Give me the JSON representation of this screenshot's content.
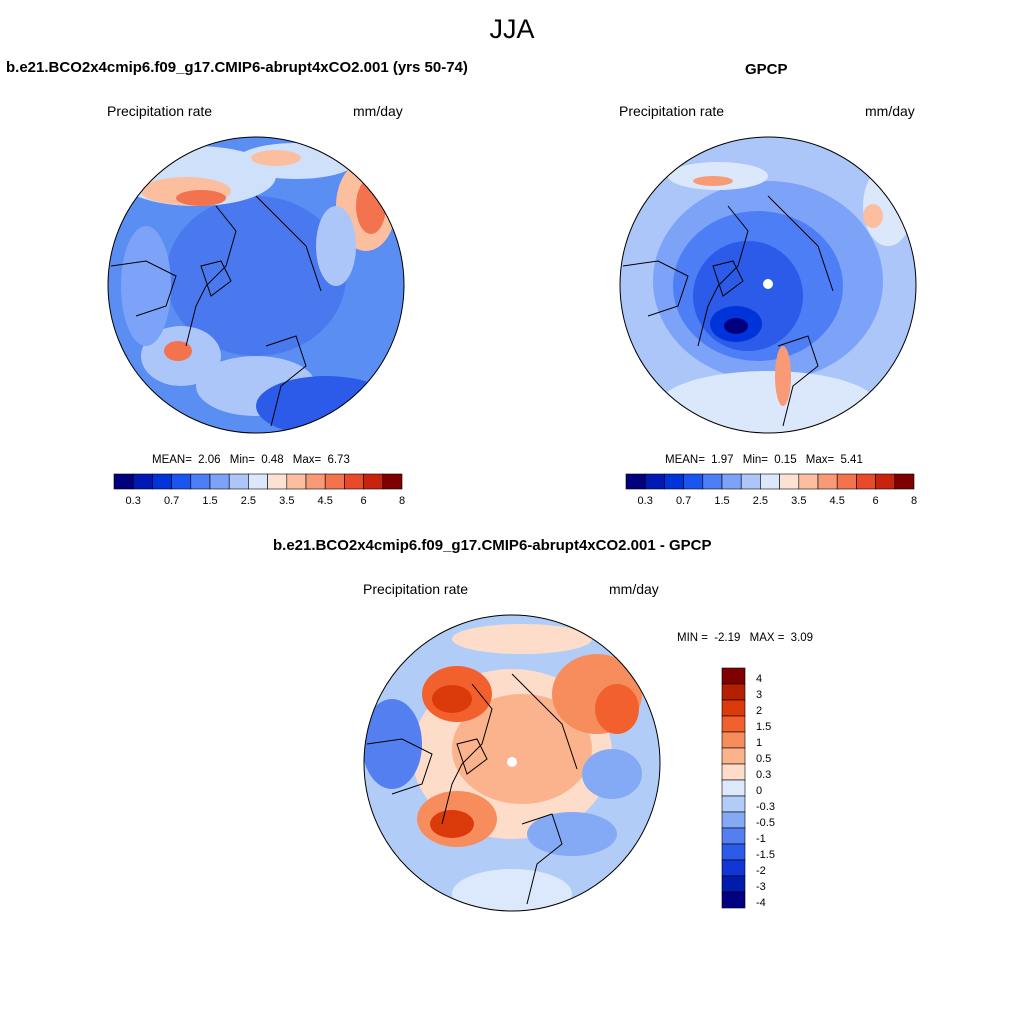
{
  "page": {
    "title": "JJA"
  },
  "chart_data": [
    {
      "type": "heatmap",
      "title": "b.e21.BCO2x4cmip6.f09_g17.CMIP6-abrupt4xCO2.001 (yrs 50-74)",
      "left_label": "Precipitation rate",
      "right_label": "mm/day",
      "stats": {
        "mean_label": "MEAN=",
        "mean": "2.06",
        "min_label": "Min=",
        "min": "0.48",
        "max_label": "Max=",
        "max": "6.73"
      },
      "colorbar": {
        "levels": [
          "0.3",
          "0.5",
          "0.7",
          "1",
          "1.5",
          "2",
          "2.5",
          "3",
          "3.5",
          "4",
          "4.5",
          "5",
          "6",
          "7",
          "8"
        ],
        "tick_labels": [
          "0.3",
          "0.7",
          "1.5",
          "2.5",
          "3.5",
          "4.5",
          "6",
          "8"
        ]
      }
    },
    {
      "type": "heatmap",
      "title": "GPCP",
      "left_label": "Precipitation rate",
      "right_label": "mm/day",
      "stats": {
        "mean_label": "MEAN=",
        "mean": "1.97",
        "min_label": "Min=",
        "min": "0.15",
        "max_label": "Max=",
        "max": "5.41"
      },
      "colorbar": {
        "levels": [
          "0.3",
          "0.5",
          "0.7",
          "1",
          "1.5",
          "2",
          "2.5",
          "3",
          "3.5",
          "4",
          "4.5",
          "5",
          "6",
          "7",
          "8"
        ],
        "tick_labels": [
          "0.3",
          "0.7",
          "1.5",
          "2.5",
          "3.5",
          "4.5",
          "6",
          "8"
        ]
      }
    },
    {
      "type": "heatmap",
      "title": "b.e21.BCO2x4cmip6.f09_g17.CMIP6-abrupt4xCO2.001 - GPCP",
      "left_label": "Precipitation rate",
      "right_label": "mm/day",
      "stats": {
        "min_label": "MIN =",
        "min": "-2.19",
        "max_label": "MAX =",
        "max": "3.09"
      },
      "colorbar": {
        "tick_labels": [
          "4",
          "3",
          "2",
          "1.5",
          "1",
          "0.5",
          "0.3",
          "0",
          "-0.3",
          "-0.5",
          "-1",
          "-1.5",
          "-2",
          "-3",
          "-4"
        ]
      }
    }
  ],
  "colors": {
    "seq": [
      "#00007f",
      "#0019b3",
      "#0033d9",
      "#1a55ef",
      "#4d7ef5",
      "#7ca3f7",
      "#adc6f9",
      "#dbe8fc",
      "#fde1d2",
      "#fbbfa0",
      "#f89a75",
      "#f3734e",
      "#e84a2a",
      "#c7240f",
      "#7f0000"
    ],
    "diff": [
      "#7f0000",
      "#b31f00",
      "#db3a0a",
      "#f2602e",
      "#f78c5c",
      "#fbb38e",
      "#fdddc9",
      "#dce9fd",
      "#b2ccf8",
      "#84aaf5",
      "#547ff1",
      "#2b5be8",
      "#1036d6",
      "#001cae",
      "#000080"
    ]
  }
}
